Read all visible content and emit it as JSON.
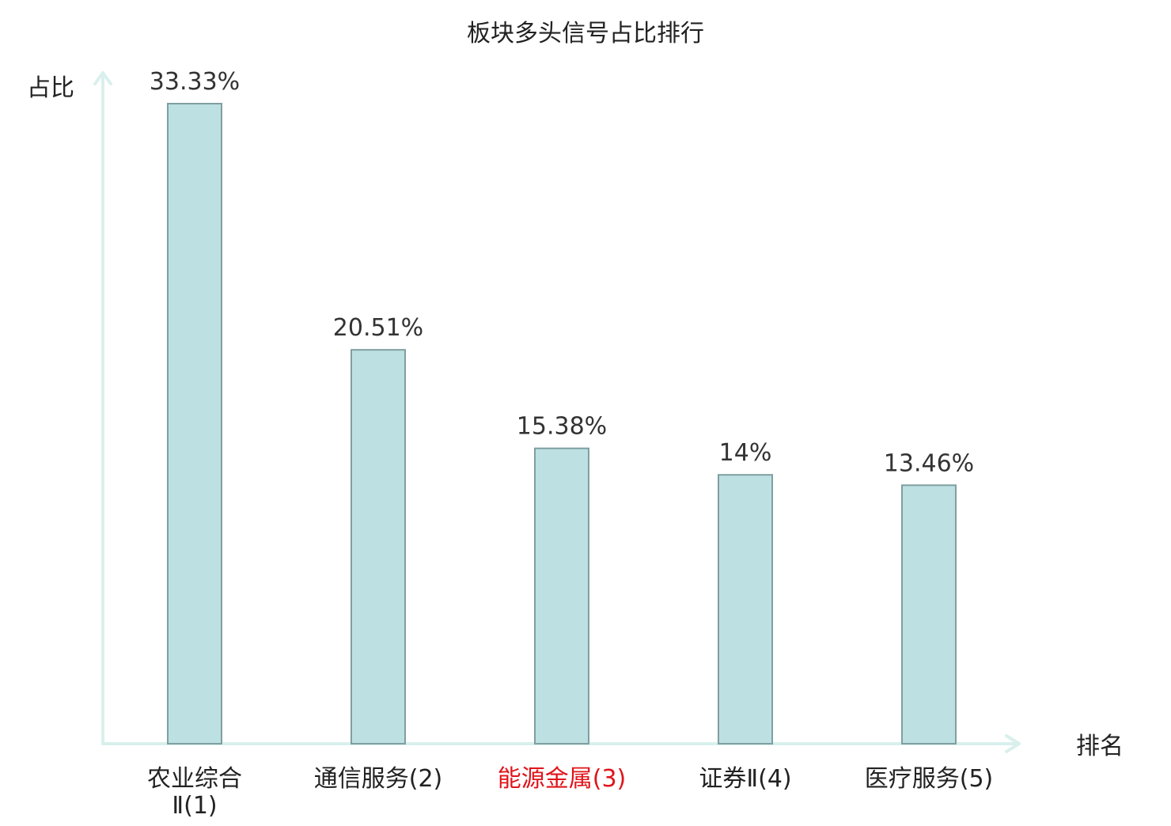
{
  "chart_data": {
    "type": "bar",
    "title": "板块多头信号占比排行",
    "ylabel": "占比",
    "xlabel": "排名",
    "categories": [
      "农业综合Ⅱ(1)",
      "通信服务(2)",
      "能源金属(3)",
      "证券Ⅱ(4)",
      "医疗服务(5)"
    ],
    "category_lines": [
      [
        "农业综合",
        "Ⅱ(1)"
      ],
      [
        "通信服务(2)"
      ],
      [
        "能源金属(3)"
      ],
      [
        "证券Ⅱ(4)"
      ],
      [
        "医疗服务(5)"
      ]
    ],
    "values": [
      33.33,
      20.51,
      15.38,
      14,
      13.46
    ],
    "value_labels": [
      "33.33%",
      "20.51%",
      "15.38%",
      "14%",
      "13.46%"
    ],
    "highlighted_index": 2,
    "ylim": [
      0,
      33.33
    ],
    "grid": false,
    "legend": "none"
  },
  "colors": {
    "bar_fill": "#bde0e2",
    "bar_stroke": "#7f9fa0",
    "axis": "#d9f0ec",
    "text": "#222222",
    "value_label": "#333333",
    "highlight": "#e0141a"
  }
}
